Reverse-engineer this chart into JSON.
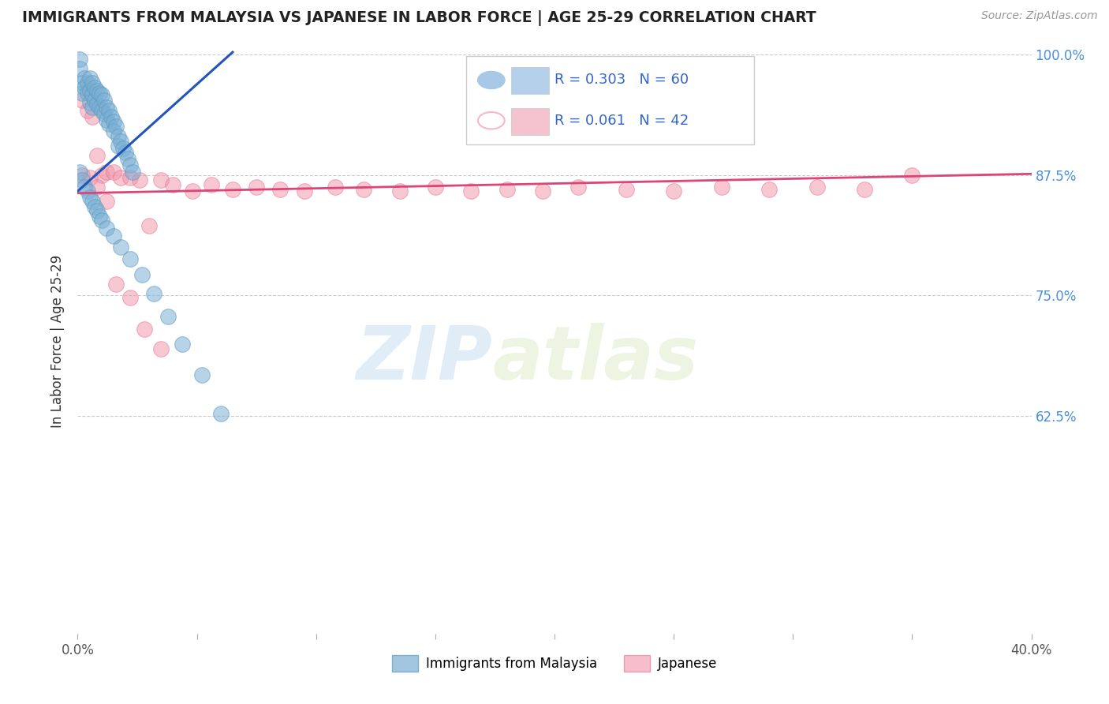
{
  "title": "IMMIGRANTS FROM MALAYSIA VS JAPANESE IN LABOR FORCE | AGE 25-29 CORRELATION CHART",
  "source_text": "Source: ZipAtlas.com",
  "ylabel": "In Labor Force | Age 25-29",
  "xlim": [
    0.0,
    0.4
  ],
  "ylim": [
    0.4,
    1.005
  ],
  "ytick_labels": [
    "100.0%",
    "87.5%",
    "75.0%",
    "62.5%"
  ],
  "ytick_values": [
    1.0,
    0.875,
    0.75,
    0.625
  ],
  "legend_entries": [
    {
      "label": "Immigrants from Malaysia",
      "color": "#a8c8e8",
      "marker_color": "#7bafd4",
      "R": 0.303,
      "N": 60
    },
    {
      "label": "Japanese",
      "color": "#f4b8c8",
      "marker_color": "#f093a7",
      "R": 0.061,
      "N": 42
    }
  ],
  "blue_scatter_x": [
    0.001,
    0.001,
    0.002,
    0.002,
    0.003,
    0.003,
    0.004,
    0.004,
    0.005,
    0.005,
    0.005,
    0.006,
    0.006,
    0.006,
    0.007,
    0.007,
    0.008,
    0.008,
    0.009,
    0.009,
    0.01,
    0.01,
    0.011,
    0.011,
    0.012,
    0.012,
    0.013,
    0.013,
    0.014,
    0.015,
    0.015,
    0.016,
    0.017,
    0.017,
    0.018,
    0.019,
    0.02,
    0.021,
    0.022,
    0.023,
    0.001,
    0.002,
    0.003,
    0.004,
    0.005,
    0.006,
    0.007,
    0.008,
    0.009,
    0.01,
    0.012,
    0.015,
    0.018,
    0.022,
    0.027,
    0.032,
    0.038,
    0.044,
    0.052,
    0.06
  ],
  "blue_scatter_y": [
    0.995,
    0.985,
    0.97,
    0.96,
    0.975,
    0.965,
    0.97,
    0.96,
    0.975,
    0.962,
    0.95,
    0.97,
    0.958,
    0.945,
    0.965,
    0.952,
    0.962,
    0.948,
    0.96,
    0.945,
    0.958,
    0.942,
    0.952,
    0.938,
    0.945,
    0.932,
    0.942,
    0.928,
    0.935,
    0.93,
    0.92,
    0.925,
    0.915,
    0.905,
    0.91,
    0.902,
    0.898,
    0.892,
    0.885,
    0.878,
    0.878,
    0.87,
    0.862,
    0.858,
    0.852,
    0.848,
    0.842,
    0.838,
    0.832,
    0.828,
    0.82,
    0.812,
    0.8,
    0.788,
    0.772,
    0.752,
    0.728,
    0.7,
    0.668,
    0.628
  ],
  "pink_scatter_x": [
    0.002,
    0.004,
    0.006,
    0.008,
    0.01,
    0.012,
    0.015,
    0.018,
    0.022,
    0.026,
    0.03,
    0.035,
    0.04,
    0.048,
    0.056,
    0.065,
    0.075,
    0.085,
    0.095,
    0.108,
    0.12,
    0.135,
    0.15,
    0.165,
    0.18,
    0.195,
    0.21,
    0.23,
    0.25,
    0.27,
    0.29,
    0.31,
    0.33,
    0.35,
    0.002,
    0.005,
    0.008,
    0.012,
    0.016,
    0.022,
    0.028,
    0.035
  ],
  "pink_scatter_y": [
    0.952,
    0.942,
    0.935,
    0.895,
    0.875,
    0.878,
    0.878,
    0.872,
    0.872,
    0.87,
    0.822,
    0.87,
    0.865,
    0.858,
    0.865,
    0.86,
    0.862,
    0.86,
    0.858,
    0.862,
    0.86,
    0.858,
    0.862,
    0.858,
    0.86,
    0.858,
    0.862,
    0.86,
    0.858,
    0.862,
    0.86,
    0.862,
    0.86,
    0.875,
    0.875,
    0.872,
    0.862,
    0.848,
    0.762,
    0.748,
    0.715,
    0.695
  ],
  "blue_line_x": [
    0.0,
    0.065
  ],
  "blue_line_y": [
    0.858,
    1.002
  ],
  "pink_line_x": [
    0.0,
    0.4
  ],
  "pink_line_y": [
    0.856,
    0.876
  ],
  "blue_color": "#7bafd4",
  "blue_edge": "#5a9abf",
  "pink_color": "#f093a7",
  "pink_edge": "#e07090",
  "blue_line_color": "#2255bb",
  "pink_line_color": "#dd4477",
  "watermark_text": "ZIP",
  "watermark_text2": "atlas",
  "background_color": "#ffffff",
  "grid_color": "#cccccc",
  "dpi": 100
}
